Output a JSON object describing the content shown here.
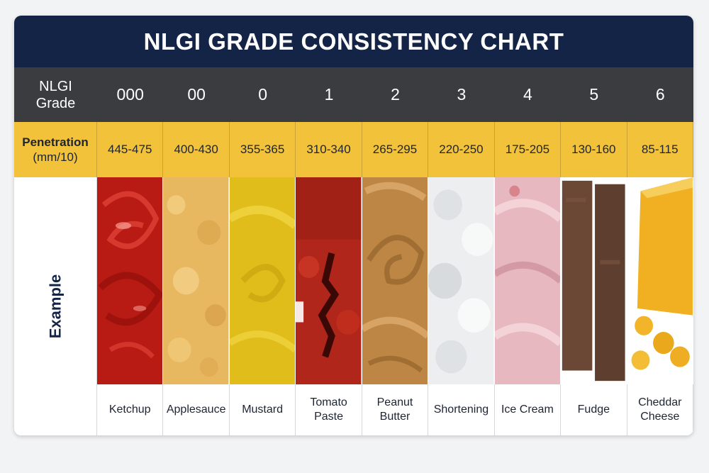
{
  "title": "NLGI GRADE CONSISTENCY CHART",
  "grade_label": "NLGI Grade",
  "penetration_label_bold": "Penetration",
  "penetration_label_unit": "(mm/10)",
  "example_label": "Example",
  "columns": [
    {
      "grade": "000",
      "penetration": "445-475",
      "example": "Ketchup",
      "swatch_color": "#c8201a"
    },
    {
      "grade": "00",
      "penetration": "400-430",
      "example": "Applesauce",
      "swatch_color": "#e9bc66"
    },
    {
      "grade": "0",
      "penetration": "355-365",
      "example": "Mustard",
      "swatch_color": "#e3c21c"
    },
    {
      "grade": "1",
      "penetration": "310-340",
      "example": "Tomato Paste",
      "swatch_color": "#b8281c"
    },
    {
      "grade": "2",
      "penetration": "265-295",
      "example": "Peanut Butter",
      "swatch_color": "#c08a48"
    },
    {
      "grade": "3",
      "penetration": "220-250",
      "example": "Shortening",
      "swatch_color": "#eef0f0"
    },
    {
      "grade": "4",
      "penetration": "175-205",
      "example": "Ice Cream",
      "swatch_color": "#e9bcc2"
    },
    {
      "grade": "5",
      "penetration": "130-160",
      "example": "Fudge",
      "swatch_color": "#6b4a3a"
    },
    {
      "grade": "6",
      "penetration": "85-115",
      "example": "Cheddar Cheese",
      "swatch_color": "#f1b526"
    }
  ]
}
